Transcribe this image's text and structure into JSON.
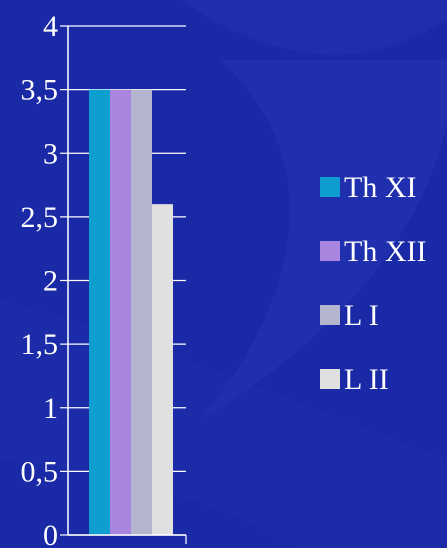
{
  "chart_data": {
    "type": "bar",
    "categories": [
      ""
    ],
    "series": [
      {
        "name": "Th XI",
        "values": [
          3.5
        ],
        "color": "#0e9ed0"
      },
      {
        "name": "Th XII",
        "values": [
          3.5
        ],
        "color": "#a886e0"
      },
      {
        "name": "L I",
        "values": [
          3.5
        ],
        "color": "#b5b5cf"
      },
      {
        "name": "L II",
        "values": [
          2.6
        ],
        "color": "#e0e0e0"
      }
    ],
    "ylim": [
      0,
      4
    ],
    "yticks": [
      0,
      0.5,
      1,
      1.5,
      2,
      2.5,
      3,
      3.5,
      4
    ],
    "ytick_labels": [
      "0",
      "0,5",
      "1",
      "1,5",
      "2",
      "2,5",
      "3",
      "3,5",
      "4"
    ],
    "title": "",
    "xlabel": "",
    "ylabel": "",
    "grid": true,
    "legend_position": "right",
    "axis_color": "#ffffff",
    "background_color": "#1a2aa6"
  }
}
